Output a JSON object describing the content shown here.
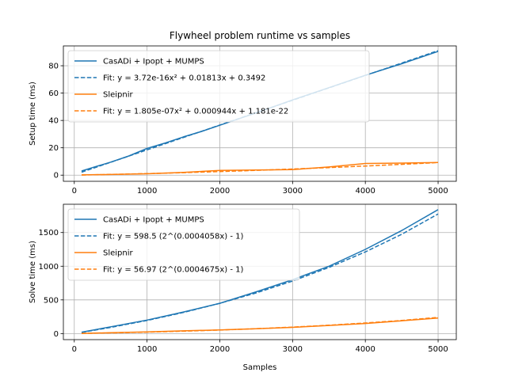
{
  "chart_data": [
    {
      "type": "line",
      "title": "Flywheel problem runtime vs samples",
      "xlabel": "",
      "ylabel": "Setup time (ms)",
      "xlim": [
        -150,
        5250
      ],
      "ylim": [
        -4.5,
        94.5
      ],
      "xticks": [
        0,
        1000,
        2000,
        3000,
        4000,
        5000
      ],
      "yticks": [
        0,
        20,
        40,
        60,
        80
      ],
      "grid": true,
      "legend_position": "upper-left",
      "series": [
        {
          "name": "CasADi + Ipopt + MUMPS",
          "color": "#1f77b4",
          "style": "solid",
          "x": [
            100,
            250,
            500,
            750,
            1000,
            1250,
            1500,
            1750,
            2000,
            2500,
            3000,
            3500,
            4000,
            4500,
            5000
          ],
          "y": [
            3.0,
            5.5,
            9.5,
            14.0,
            19.5,
            23.5,
            28.0,
            32.0,
            36.5,
            45.5,
            55.0,
            64.0,
            73.0,
            81.5,
            90.5
          ]
        },
        {
          "name": "Fit: y = 3.72e-16x² + 0.01813x + 0.3492",
          "color": "#1f77b4",
          "style": "dashed",
          "x": [
            100,
            5000
          ],
          "y": [
            2.16,
            91.0
          ]
        },
        {
          "name": "Sleipnir",
          "color": "#ff7f0e",
          "style": "solid",
          "x": [
            100,
            500,
            1000,
            1500,
            2000,
            2500,
            3000,
            3500,
            4000,
            4500,
            5000
          ],
          "y": [
            0.2,
            0.5,
            1.0,
            2.0,
            3.5,
            3.7,
            4.0,
            6.0,
            8.5,
            8.8,
            9.2
          ]
        },
        {
          "name": "Fit: y = 1.805e-07x² + 0.000944x + 1.181e-22",
          "color": "#ff7f0e",
          "style": "dashed",
          "x": [
            100,
            500,
            1000,
            1500,
            2000,
            2500,
            3000,
            3500,
            4000,
            4500,
            5000
          ],
          "y": [
            0.096,
            0.517,
            1.124,
            1.822,
            2.61,
            3.488,
            4.456,
            5.515,
            6.664,
            7.903,
            9.233
          ]
        }
      ]
    },
    {
      "type": "line",
      "title": "",
      "xlabel": "Samples",
      "ylabel": "Solve time (ms)",
      "xlim": [
        -150,
        5250
      ],
      "ylim": [
        -90,
        1920
      ],
      "xticks": [
        0,
        1000,
        2000,
        3000,
        4000,
        5000
      ],
      "yticks": [
        0,
        500,
        1000,
        1500
      ],
      "grid": true,
      "legend_position": "upper-left",
      "series": [
        {
          "name": "CasADi + Ipopt + MUMPS",
          "color": "#1f77b4",
          "style": "solid",
          "x": [
            100,
            500,
            1000,
            1500,
            2000,
            2500,
            3000,
            3500,
            4000,
            4500,
            5000
          ],
          "y": [
            20,
            100,
            200,
            320,
            450,
            620,
            800,
            1000,
            1250,
            1530,
            1840
          ]
        },
        {
          "name": "Fit: y = 598.5 (2^(0.0004058x) - 1)",
          "color": "#1f77b4",
          "style": "dashed",
          "x": [
            100,
            500,
            1000,
            1500,
            2000,
            2500,
            3000,
            3500,
            4000,
            4500,
            5000
          ],
          "y": [
            17.0,
            91.0,
            195.0,
            313.0,
            449.0,
            603.0,
            780.0,
            982.0,
            1212.0,
            1474.0,
            1775.0
          ]
        },
        {
          "name": "Sleipnir",
          "color": "#ff7f0e",
          "style": "solid",
          "x": [
            100,
            500,
            1000,
            1500,
            2000,
            2500,
            3000,
            3500,
            4000,
            4500,
            5000
          ],
          "y": [
            3,
            12,
            25,
            40,
            55,
            72,
            92,
            120,
            150,
            190,
            230
          ]
        },
        {
          "name": "Fit: y = 56.97 (2^(0.0004675x) - 1)",
          "color": "#ff7f0e",
          "style": "dashed",
          "x": [
            100,
            500,
            1000,
            1500,
            2000,
            2500,
            3000,
            3500,
            4000,
            4500,
            5000
          ],
          "y": [
            1.9,
            10.0,
            21.9,
            36.0,
            52.8,
            72.5,
            95.9,
            123.6,
            156.3,
            194.9,
            240.6
          ]
        }
      ]
    }
  ]
}
